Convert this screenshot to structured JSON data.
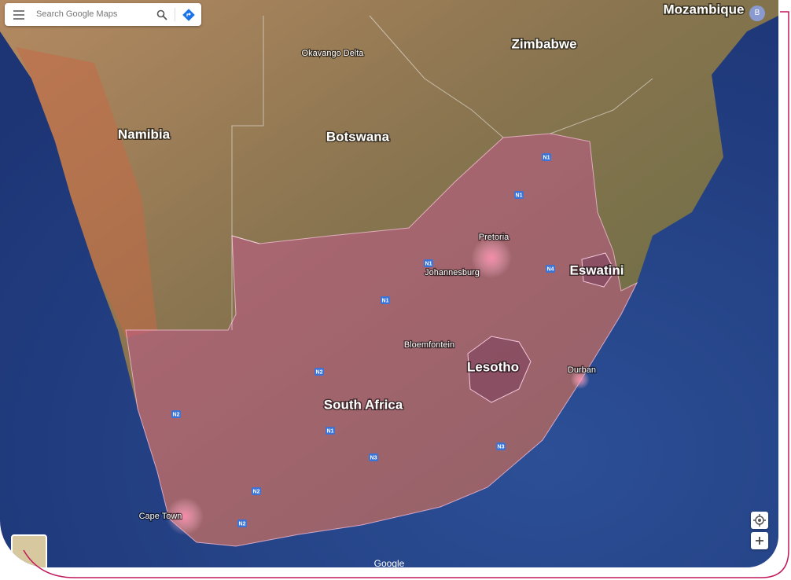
{
  "search": {
    "placeholder": "Search Google Maps"
  },
  "account": {
    "initial": "B"
  },
  "map": {
    "countries": [
      "Mozambique",
      "Zimbabwe",
      "Namibia",
      "Botswana",
      "South Africa",
      "Lesotho",
      "Eswatini"
    ],
    "places": [
      "Okavango Delta",
      "Pretoria",
      "Johannesburg",
      "Bloemfontein",
      "Durban",
      "Cape Town"
    ],
    "roads": [
      "N1",
      "N1",
      "N1",
      "N1",
      "N2",
      "N2",
      "N2",
      "N3",
      "N3",
      "N4",
      "N1",
      "N2"
    ]
  },
  "attribution": "Google"
}
